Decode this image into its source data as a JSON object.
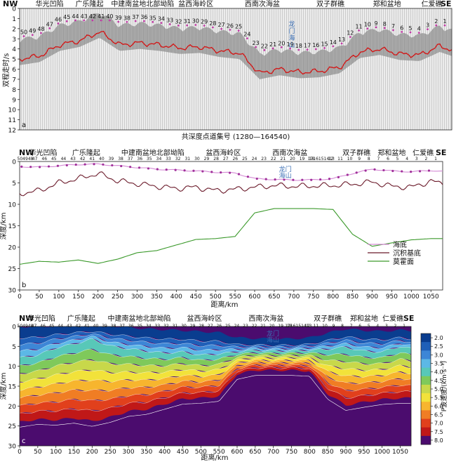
{
  "panel_a": {
    "tag": "a",
    "ylabel": "双程走时/s",
    "xlabel": "共深度点道集号 (1280—164540)",
    "left_end": "NW",
    "right_end": "SE",
    "region_labels": [
      {
        "text": "华光凹陷",
        "x": 0.09
      },
      {
        "text": "广乐隆起",
        "x": 0.21
      },
      {
        "text": "中建南盆地北部坳陷",
        "x": 0.37
      },
      {
        "text": "盆西海岭区",
        "x": 0.53
      },
      {
        "text": "西南次海盆",
        "x": 0.73
      },
      {
        "text": "双子群礁",
        "x": 0.935
      },
      {
        "text": "郑和盆地",
        "x": 1.105
      },
      {
        "text": "仁爱礁",
        "x": 1.24
      }
    ],
    "seamount": {
      "chars": [
        "龙",
        "门",
        "海",
        "山"
      ],
      "color": "#3b6fb5"
    },
    "y_ticks": [
      "0",
      "1",
      "2",
      "3",
      "4",
      "5",
      "6",
      "7",
      "8",
      "9",
      "10",
      "11",
      "12"
    ],
    "site_numbers_top": [
      "50",
      "49",
      "48",
      "47",
      "46",
      "45",
      "44",
      "43",
      "42",
      "41",
      "40",
      "39",
      "38",
      "37",
      "36",
      "35",
      "34",
      "33",
      "32",
      "31",
      "30",
      "29",
      "28",
      "27",
      "26",
      "25",
      "24",
      "23",
      "22",
      "21",
      "20",
      "19",
      "18",
      "17",
      "16",
      "15",
      "14",
      "13",
      "12",
      "11",
      "10",
      "9",
      "8",
      "7",
      "6",
      "5",
      "4",
      "3",
      "2",
      "1"
    ],
    "curve_color": "#d11a1a"
  },
  "panel_b": {
    "tag": "b",
    "ylabel": "深度/km",
    "xlabel": "距离/km",
    "left_end": "NW",
    "right_end": "SE",
    "region_labels": [
      "华光凹陷",
      "广乐隆起",
      "中建南盆地北部坳陷",
      "盆西海岭区",
      "西南次海盆",
      "双子群礁",
      "郑和盆地",
      "仁爱礁"
    ],
    "station_ticks": [
      "504948",
      "47",
      "46",
      "45",
      "44",
      "43",
      "42",
      "41",
      "40",
      "39",
      "38",
      "37",
      "36",
      "35",
      "34",
      "33",
      "32",
      "31",
      "30",
      "29",
      "28",
      "27",
      "26",
      "25",
      "24",
      "23",
      "22",
      "21",
      "20",
      "19",
      "18",
      "1716151413",
      "12",
      "11",
      "10",
      "9",
      "8",
      "7",
      "6",
      "5",
      "4",
      "3",
      "2",
      "1"
    ],
    "seamount": {
      "chars": [
        "龙",
        "门",
        "海",
        "山"
      ],
      "color": "#3b6fb5"
    },
    "legend": [
      {
        "label": "海底",
        "color": "#d58ad5"
      },
      {
        "label": "沉积基底",
        "color": "#6b1a2a"
      },
      {
        "label": "莫霍面",
        "color": "#3c9a2c"
      }
    ],
    "legend_position": "bottom-right"
  },
  "panel_c": {
    "tag": "c",
    "ylabel": "深度/km",
    "xlabel": "距离/km",
    "left_end": "NW",
    "right_end": "SE",
    "region_labels": [
      "华光凹陷",
      "广乐隆起",
      "中建南盆地北部坳陷",
      "盆西海岭区",
      "西南次海盆",
      "双子群礁",
      "郑和盆地",
      "仁爱礁"
    ],
    "seamount": {
      "chars": [
        "龙",
        "门",
        "海",
        "山"
      ],
      "color": "#3b6fb5"
    },
    "colorbar_title": "P波速度/(km·s⁻¹)",
    "colorbar_ticks": [
      "2.0",
      "2.5",
      "3.0",
      "3.5",
      "4.0",
      "4.5",
      "5.0",
      "5.5",
      "6.0",
      "6.5",
      "7.0",
      "7.5",
      "8.0"
    ],
    "colorbar_colors": [
      "#0a3d8f",
      "#1f5fb8",
      "#3d86d6",
      "#5cb8e6",
      "#58c8b8",
      "#7fc95b",
      "#c8d84a",
      "#f2e23a",
      "#f7b52e",
      "#f07d24",
      "#e1401c",
      "#c01818",
      "#4b0c6e"
    ]
  },
  "chart_data": [
    {
      "type": "line",
      "panel": "a",
      "title": "",
      "xlabel": "共深度点道集号 (1280—164540)",
      "ylabel": "双程走时/s",
      "ylim": [
        12,
        0
      ],
      "y_ticks": [
        0,
        1,
        2,
        3,
        4,
        5,
        6,
        7,
        8,
        9,
        10,
        11,
        12
      ],
      "grid": false,
      "series": [
        {
          "name": "",
          "x": [
            0,
            50,
            100,
            150,
            200,
            250,
            300,
            350,
            400,
            450,
            500,
            550,
            600,
            650,
            700,
            750,
            800,
            850,
            900,
            950,
            1000,
            1050,
            1080
          ],
          "y": [
            5.0,
            4.7,
            3.6,
            3.2,
            2.3,
            3.6,
            3.4,
            3.6,
            3.9,
            3.8,
            4.2,
            4.4,
            6.4,
            6.0,
            6.3,
            6.2,
            5.8,
            4.3,
            4.0,
            4.5,
            4.6,
            3.7,
            4.1
          ]
        }
      ]
    },
    {
      "type": "line",
      "panel": "b",
      "title": "",
      "xlabel": "距离/km",
      "ylabel": "深度/km",
      "xlim": [
        0,
        1080
      ],
      "ylim": [
        30,
        0
      ],
      "x_ticks": [
        0,
        50,
        100,
        150,
        200,
        250,
        300,
        350,
        400,
        450,
        500,
        550,
        600,
        650,
        700,
        750,
        800,
        850,
        900,
        950,
        1000,
        1050
      ],
      "y_ticks": [
        0,
        5,
        10,
        15,
        20,
        25,
        30
      ],
      "grid": false,
      "legend": "bottom-right",
      "x": [
        0,
        50,
        100,
        150,
        200,
        250,
        300,
        350,
        400,
        450,
        500,
        550,
        600,
        650,
        700,
        750,
        800,
        850,
        900,
        950,
        1000,
        1050,
        1080
      ],
      "series": [
        {
          "name": "海底",
          "values": [
            1.2,
            1.3,
            1.0,
            0.7,
            0.6,
            1.0,
            1.4,
            1.8,
            2.0,
            2.2,
            2.5,
            2.7,
            4.0,
            4.2,
            4.3,
            4.3,
            4.0,
            2.8,
            1.8,
            2.2,
            2.4,
            2.1,
            2.3
          ]
        },
        {
          "name": "沉积基底",
          "values": [
            7.5,
            6.8,
            5.0,
            4.0,
            2.8,
            4.5,
            5.2,
            5.8,
            6.3,
            6.0,
            6.8,
            6.5,
            6.0,
            5.6,
            5.8,
            5.7,
            5.6,
            5.3,
            4.8,
            5.8,
            6.0,
            4.6,
            5.2
          ]
        },
        {
          "name": "莫霍面",
          "values": [
            24.0,
            23.3,
            23.5,
            23.0,
            23.8,
            22.8,
            21.3,
            20.8,
            19.5,
            18.2,
            18.0,
            17.5,
            12.0,
            11.0,
            11.0,
            11.0,
            11.2,
            17.0,
            19.8,
            19.0,
            18.3,
            18.0,
            18.0
          ]
        }
      ]
    },
    {
      "type": "heatmap",
      "panel": "c",
      "title": "",
      "xlabel": "距离/km",
      "ylabel": "深度/km",
      "xlim": [
        0,
        1080
      ],
      "ylim": [
        30,
        0
      ],
      "x_ticks": [
        0,
        50,
        100,
        150,
        200,
        250,
        300,
        350,
        400,
        450,
        500,
        550,
        600,
        650,
        700,
        750,
        800,
        850,
        900,
        950,
        1000,
        1050
      ],
      "y_ticks": [
        0,
        5,
        10,
        15,
        20,
        25,
        30
      ],
      "colorbar": {
        "label": "P波速度/(km·s⁻¹)",
        "min": 2.0,
        "max": 8.0,
        "step": 0.5
      }
    }
  ]
}
